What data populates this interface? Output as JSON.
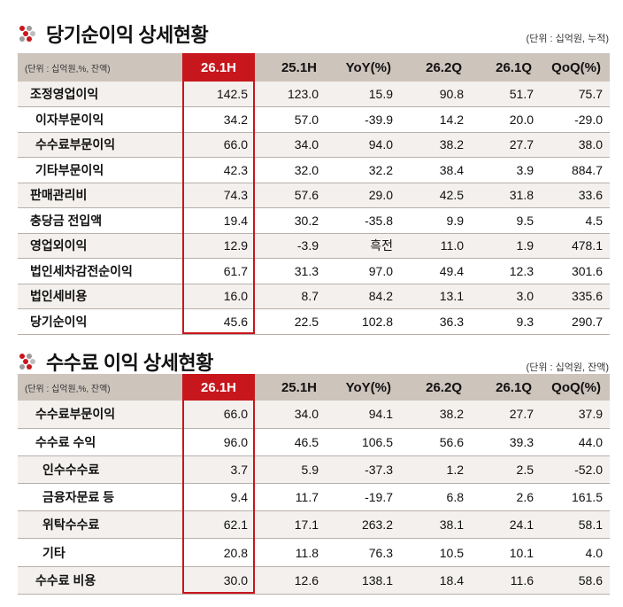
{
  "section1": {
    "title": "당기순이익 상세현황",
    "unit_note": "(단위 : 십억원, 누적)",
    "header": [
      "(단위 : 십억원,%, 잔액)",
      "26.1H",
      "25.1H",
      "YoY(%)",
      "26.2Q",
      "26.1Q",
      "QoQ(%)"
    ],
    "rows": [
      {
        "label": "조정영업이익",
        "values": [
          "142.5",
          "123.0",
          "15.9",
          "90.8",
          "51.7",
          "75.7"
        ]
      },
      {
        "label": "이자부문이익",
        "values": [
          "34.2",
          "57.0",
          "-39.9",
          "14.2",
          "20.0",
          "-29.0"
        ]
      },
      {
        "label": "수수료부문이익",
        "values": [
          "66.0",
          "34.0",
          "94.0",
          "38.2",
          "27.7",
          "38.0"
        ]
      },
      {
        "label": "기타부문이익",
        "values": [
          "42.3",
          "32.0",
          "32.2",
          "38.4",
          "3.9",
          "884.7"
        ]
      },
      {
        "label": "판매관리비",
        "values": [
          "74.3",
          "57.6",
          "29.0",
          "42.5",
          "31.8",
          "33.6"
        ]
      },
      {
        "label": "충당금 전입액",
        "values": [
          "19.4",
          "30.2",
          "-35.8",
          "9.9",
          "9.5",
          "4.5"
        ]
      },
      {
        "label": "영업외이익",
        "values": [
          "12.9",
          "-3.9",
          "흑전",
          "11.0",
          "1.9",
          "478.1"
        ]
      },
      {
        "label": "법인세차감전순이익",
        "values": [
          "61.7",
          "31.3",
          "97.0",
          "49.4",
          "12.3",
          "301.6"
        ]
      },
      {
        "label": "법인세비용",
        "values": [
          "16.0",
          "8.7",
          "84.2",
          "13.1",
          "3.0",
          "335.6"
        ]
      },
      {
        "label": "당기순이익",
        "values": [
          "45.6",
          "22.5",
          "102.8",
          "36.3",
          "9.3",
          "290.7"
        ]
      }
    ]
  },
  "section2": {
    "title": "수수료 이익 상세현황",
    "unit_note": "(단위 : 십억원, 잔액)",
    "header": [
      "(단위 : 십억원,%, 잔액)",
      "26.1H",
      "25.1H",
      "YoY(%)",
      "26.2Q",
      "26.1Q",
      "QoQ(%)"
    ],
    "rows": [
      {
        "label": "수수료부문이익",
        "values": [
          "66.0",
          "34.0",
          "94.1",
          "38.2",
          "27.7",
          "37.9"
        ]
      },
      {
        "label": "수수료 수익",
        "values": [
          "96.0",
          "46.5",
          "106.5",
          "56.6",
          "39.3",
          "44.0"
        ]
      },
      {
        "label": "인수수수료",
        "values": [
          "3.7",
          "5.9",
          "-37.3",
          "1.2",
          "2.5",
          "-52.0"
        ]
      },
      {
        "label": "금융자문료 등",
        "values": [
          "9.4",
          "11.7",
          "-19.7",
          "6.8",
          "2.6",
          "161.5"
        ]
      },
      {
        "label": "위탁수수료",
        "values": [
          "62.1",
          "17.1",
          "263.2",
          "38.1",
          "24.1",
          "58.1"
        ]
      },
      {
        "label": "기타",
        "values": [
          "20.8",
          "11.8",
          "76.3",
          "10.5",
          "10.1",
          "4.0"
        ]
      },
      {
        "label": "수수료 비용",
        "values": [
          "30.0",
          "12.6",
          "138.1",
          "18.4",
          "11.6",
          "58.6"
        ]
      }
    ]
  },
  "colors": {
    "accent": "#c8161d",
    "header_bg": "#cdc4bc",
    "row_alt": "#f3f0ed"
  },
  "icons": {
    "logo": "dot-cluster-logo-icon"
  }
}
